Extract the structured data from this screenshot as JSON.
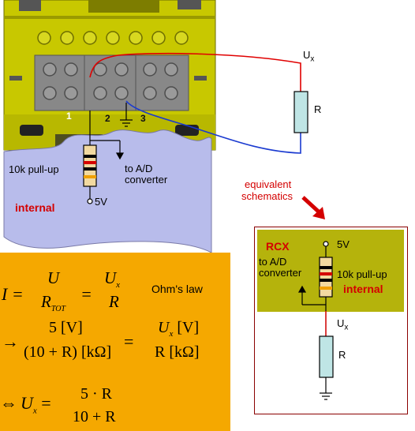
{
  "brick": {
    "port_numbers": [
      "1",
      "2",
      "3"
    ],
    "labels": {
      "pullup": "10k pull-up",
      "to_ad": "to A/D",
      "converter": "converter",
      "internal": "internal",
      "five_v": "5V"
    }
  },
  "external": {
    "ux": "U",
    "ux_sub": "x",
    "r": "R"
  },
  "equivalent_label": {
    "line1": "equivalent",
    "line2": "schematics"
  },
  "equivalent": {
    "rcx": "RCX",
    "to_ad": "to A/D",
    "converter": "converter",
    "pullup": "10k pull-up",
    "internal": "internal",
    "five_v": "5V",
    "ux": "U",
    "ux_sub": "x",
    "r": "R"
  },
  "formulas": {
    "ohms_law": "Ohm's law",
    "eq1": {
      "lhs": "I =",
      "n1": "U",
      "d1": "R",
      "d1_sub": "TOT",
      "n2": "U",
      "n2_sub": "x",
      "d2": "R"
    },
    "eq2": {
      "arrow": "→",
      "n1": "5 [V]",
      "d1": "(10 + R) [kΩ]",
      "n2a": "U",
      "n2_sub": "x",
      "n2b": " [V]",
      "d2": "R [kΩ]"
    },
    "eq3": {
      "arrow": "⇔",
      "lhs": "U",
      "lhs_sub": "x",
      "eq": " =",
      "n": "5 · R",
      "d": "10 + R"
    }
  },
  "colors": {
    "lego_yellow": "#c8c800",
    "lego_gray": "#888888",
    "internal_panel": "#b8bceb",
    "formula_bg": "#f5a800",
    "rcx_panel": "#b5b30c",
    "resistor": "#bfe5e5",
    "wire_red": "#e00000",
    "wire_blue": "#1a3ad0",
    "accent_red": "#d40000"
  }
}
